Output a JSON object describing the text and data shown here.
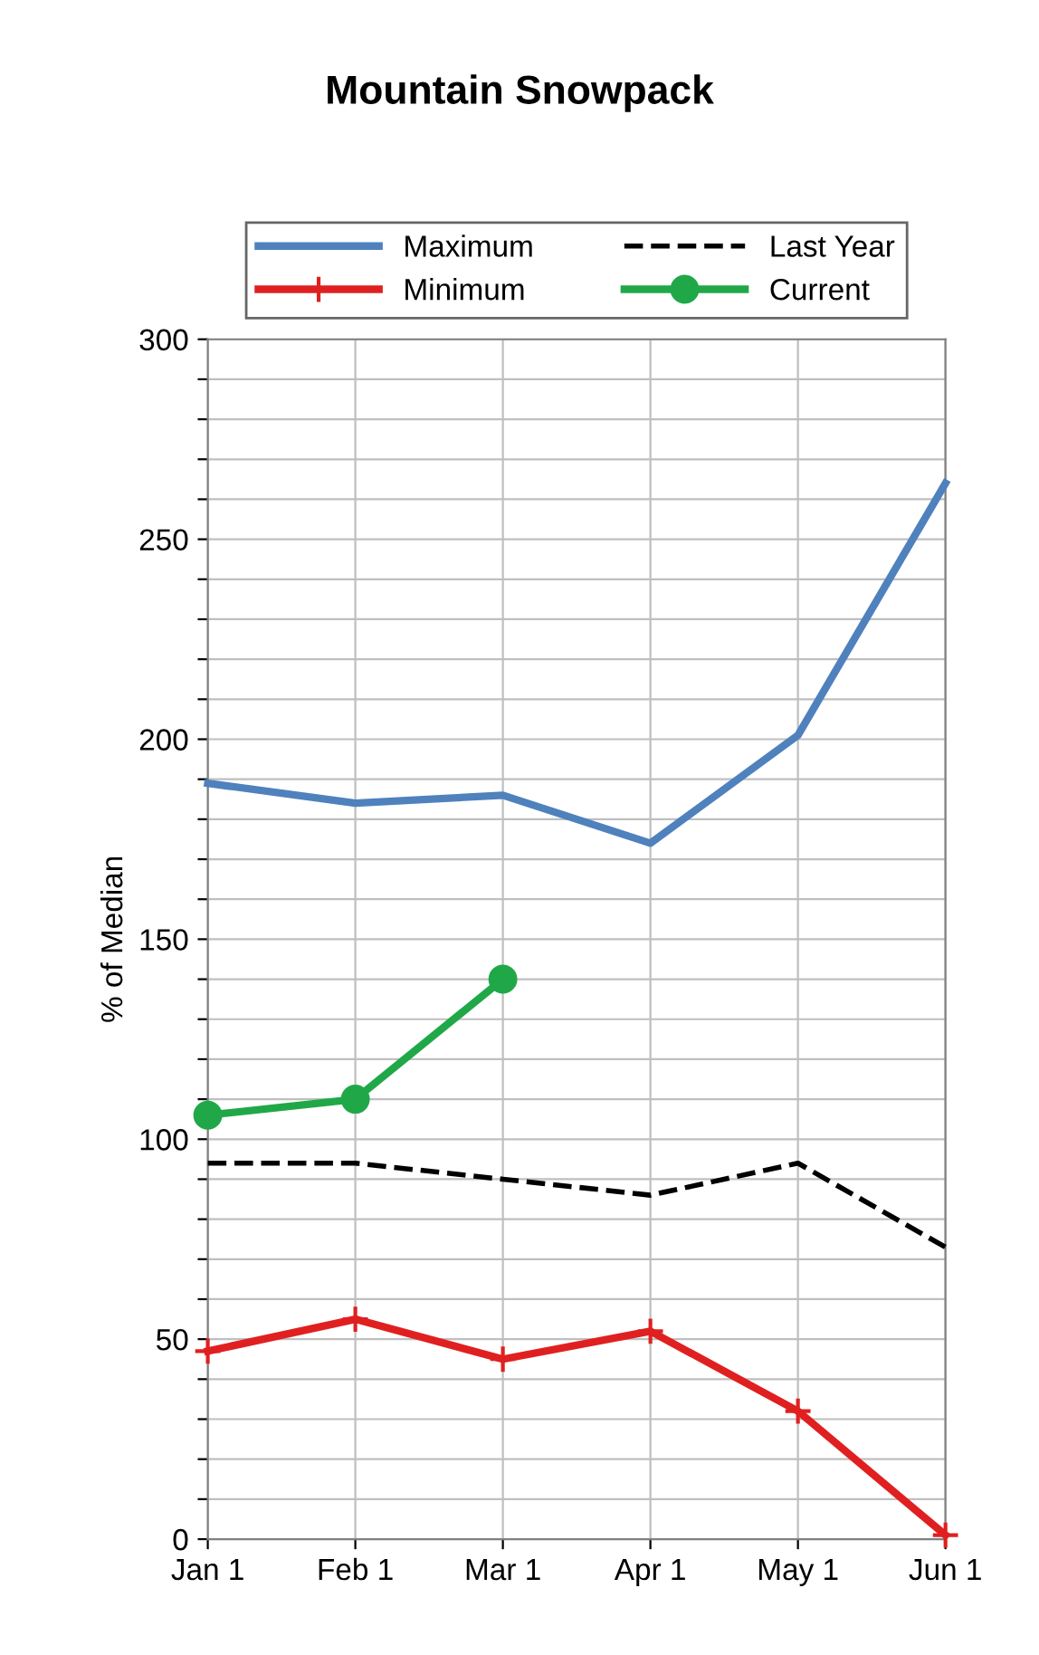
{
  "chart_data": {
    "type": "line",
    "title": "Mountain Snowpack",
    "ylabel": "% of Median",
    "categories": [
      "Jan 1",
      "Feb 1",
      "Mar 1",
      "Apr 1",
      "May 1",
      "Jun 1"
    ],
    "series": [
      {
        "name": "Maximum",
        "color": "#4f81bd",
        "values": [
          189,
          184,
          186,
          174,
          201,
          264
        ],
        "marker": "none",
        "line_style": "solid"
      },
      {
        "name": "Minimum",
        "color": "#e02020",
        "values": [
          47,
          55,
          45,
          52,
          32,
          1
        ],
        "marker": "cross",
        "line_style": "solid"
      },
      {
        "name": "Last Year",
        "color": "#000000",
        "values": [
          94,
          94,
          90,
          86,
          94,
          73
        ],
        "marker": "none",
        "line_style": "dashed"
      },
      {
        "name": "Current",
        "color": "#20a848",
        "values": [
          106,
          110,
          140,
          null,
          null,
          null
        ],
        "marker": "circle",
        "line_style": "solid"
      }
    ],
    "ylim": [
      0,
      300
    ],
    "yticks": [
      0,
      {
        "value": 10,
        "label": null
      },
      {
        "value": 20,
        "label": null
      },
      {
        "value": 30,
        "label": null
      },
      {
        "value": 40,
        "label": null
      },
      50,
      {
        "value": 60,
        "label": null
      },
      {
        "value": 70,
        "label": null
      },
      {
        "value": 80,
        "label": null
      },
      {
        "value": 90,
        "label": null
      },
      100,
      {
        "value": 110,
        "label": null
      },
      {
        "value": 120,
        "label": null
      },
      {
        "value": 130,
        "label": null
      },
      {
        "value": 140,
        "label": null
      },
      150,
      {
        "value": 160,
        "label": null
      },
      {
        "value": 170,
        "label": null
      },
      {
        "value": 180,
        "label": null
      },
      {
        "value": 190,
        "label": null
      },
      200,
      {
        "value": 210,
        "label": null
      },
      {
        "value": 220,
        "label": null
      },
      {
        "value": 230,
        "label": null
      },
      {
        "value": 240,
        "label": null
      },
      250,
      {
        "value": 260,
        "label": null
      },
      {
        "value": 270,
        "label": null
      },
      {
        "value": 280,
        "label": null
      },
      {
        "value": 290,
        "label": null
      },
      300
    ],
    "grid": true,
    "legend": "top"
  }
}
